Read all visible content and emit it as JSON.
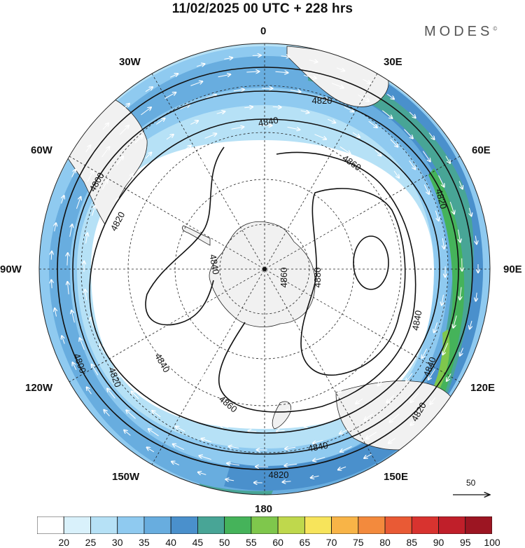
{
  "header": {
    "title": "11/02/2025  00 UTC  + 228 hrs",
    "brand": "MODES",
    "brand_mark": "©"
  },
  "map": {
    "projection": "south-polar-stereographic",
    "meridian_labels": [
      "0",
      "30E",
      "60E",
      "90E",
      "120E",
      "150E",
      "180",
      "150W",
      "120W",
      "90W",
      "60W",
      "30W"
    ],
    "contour_field": "geopotential height",
    "contour_labels": [
      "4800",
      "4820",
      "4840",
      "4860",
      "4880"
    ],
    "vector_reference": {
      "label": "50"
    },
    "land_color": "#f1f1f1",
    "ocean_color": "#ffffff"
  },
  "colorbar": {
    "tick_labels": [
      "20",
      "25",
      "30",
      "35",
      "40",
      "45",
      "50",
      "55",
      "60",
      "65",
      "70",
      "75",
      "80",
      "85",
      "90",
      "95",
      "100"
    ],
    "colors": [
      "#ffffff",
      "#d9f1fb",
      "#b6e1f6",
      "#8fcaf0",
      "#68addf",
      "#4a90cc",
      "#48a596",
      "#45b35a",
      "#7fc74c",
      "#bfd84c",
      "#f7e45b",
      "#f8b447",
      "#f38a3d",
      "#e95a35",
      "#d8332f",
      "#c01f2a",
      "#9c1522"
    ]
  }
}
